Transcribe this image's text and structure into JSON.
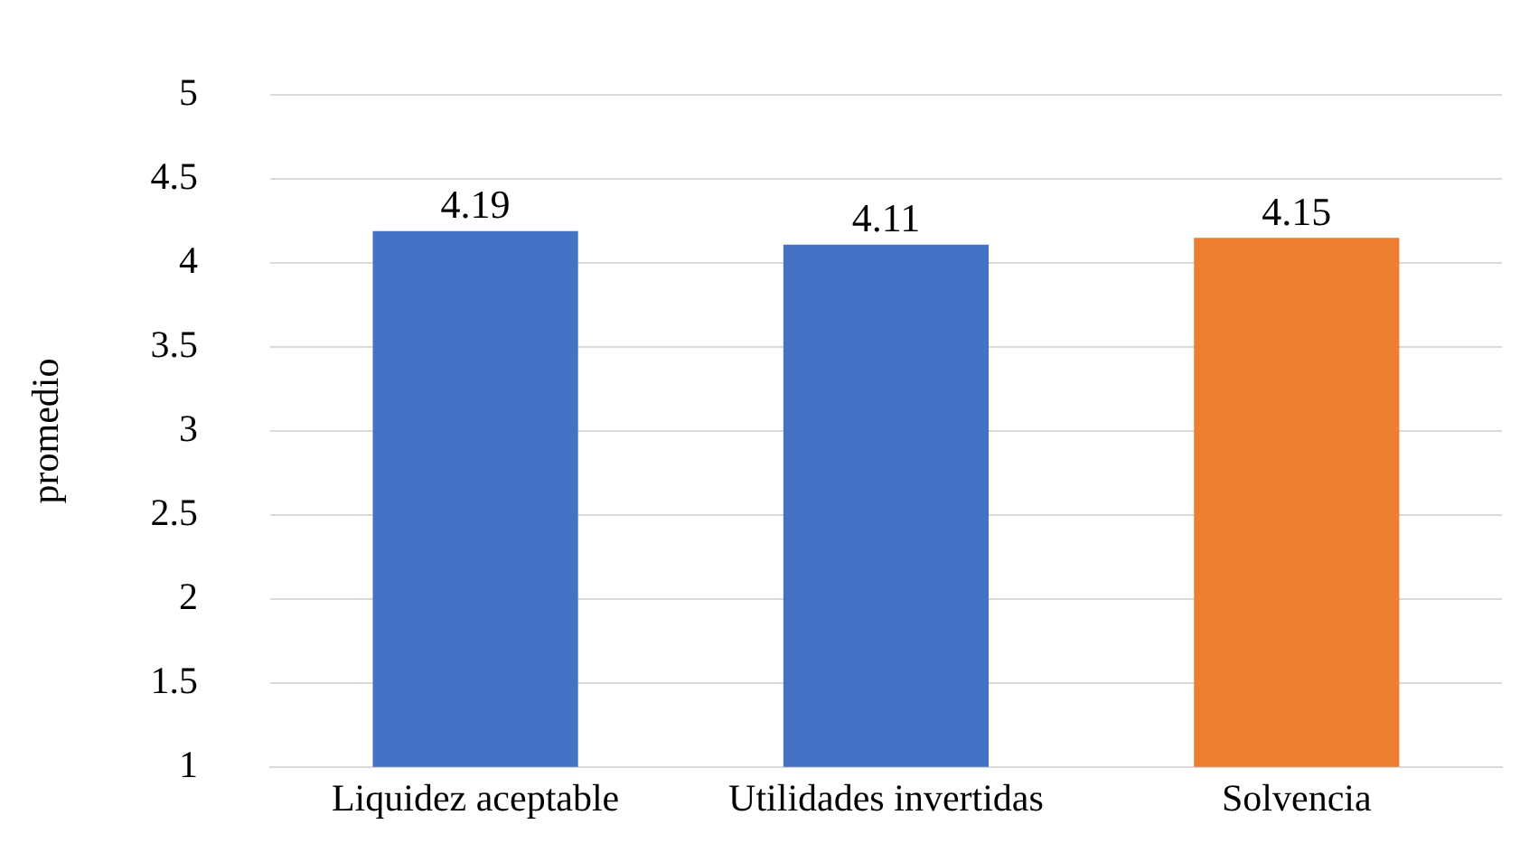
{
  "chart_data": {
    "type": "bar",
    "ylabel": "promedio",
    "categories": [
      "Liquidez aceptable",
      "Utilidades invertidas",
      "Solvencia"
    ],
    "values": [
      4.19,
      4.11,
      4.15
    ],
    "colors": [
      "#4472c4",
      "#4472c4",
      "#ed7d31"
    ],
    "ylim": [
      1,
      5
    ],
    "yticks": [
      1,
      1.5,
      2,
      2.5,
      3,
      3.5,
      4,
      4.5,
      5
    ],
    "grid": "y",
    "data_labels": true
  }
}
